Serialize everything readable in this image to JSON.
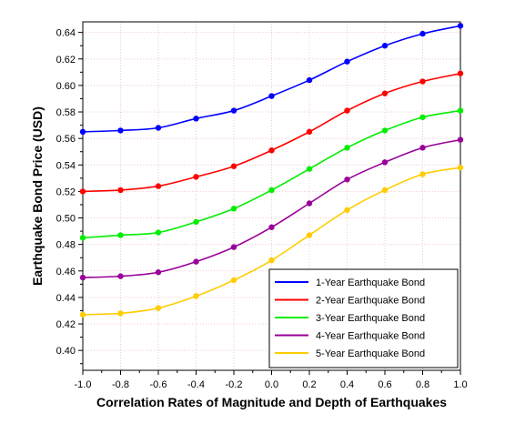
{
  "chart_data": {
    "type": "line",
    "title": "",
    "xlabel": "Correlation Rates of Magnitude and Depth of Earthquakes",
    "ylabel": "Earthquake Bond Price (USD)",
    "xlim": [
      -1.0,
      1.0
    ],
    "ylim": [
      0.385,
      0.648
    ],
    "x": [
      -1.0,
      -0.8,
      -0.6,
      -0.4,
      -0.2,
      0.0,
      0.2,
      0.4,
      0.6,
      0.8,
      1.0
    ],
    "x_tick_labels": [
      "-1.0",
      "-0.8",
      "-0.6",
      "-0.4",
      "-0.2",
      "0.0",
      "0.2",
      "0.4",
      "0.6",
      "0.8",
      "1.0"
    ],
    "y_ticks": [
      0.4,
      0.42,
      0.44,
      0.46,
      0.48,
      0.5,
      0.52,
      0.54,
      0.56,
      0.58,
      0.6,
      0.62,
      0.64
    ],
    "y_tick_labels": [
      "0.40",
      "0.42",
      "0.44",
      "0.46",
      "0.48",
      "0.50",
      "0.52",
      "0.54",
      "0.56",
      "0.58",
      "0.60",
      "0.62",
      "0.64"
    ],
    "grid": true,
    "legend_position": "bottom-right",
    "series": [
      {
        "name": "1-Year Earthquake Bond",
        "color": "#0000ff",
        "values": [
          0.565,
          0.566,
          0.568,
          0.575,
          0.581,
          0.592,
          0.604,
          0.618,
          0.63,
          0.639,
          0.645
        ]
      },
      {
        "name": "2-Year Earthquake Bond",
        "color": "#ff0000",
        "values": [
          0.52,
          0.521,
          0.524,
          0.531,
          0.539,
          0.551,
          0.565,
          0.581,
          0.594,
          0.603,
          0.609
        ]
      },
      {
        "name": "3-Year Earthquake Bond",
        "color": "#00ee00",
        "values": [
          0.485,
          0.487,
          0.489,
          0.497,
          0.507,
          0.521,
          0.537,
          0.553,
          0.566,
          0.576,
          0.581
        ]
      },
      {
        "name": "4-Year Earthquake Bond",
        "color": "#990099",
        "values": [
          0.455,
          0.456,
          0.459,
          0.467,
          0.478,
          0.493,
          0.511,
          0.529,
          0.542,
          0.553,
          0.559
        ]
      },
      {
        "name": "5-Year Earthquake Bond",
        "color": "#ffcc00",
        "values": [
          0.427,
          0.428,
          0.432,
          0.441,
          0.453,
          0.468,
          0.487,
          0.506,
          0.521,
          0.533,
          0.538
        ]
      }
    ]
  }
}
